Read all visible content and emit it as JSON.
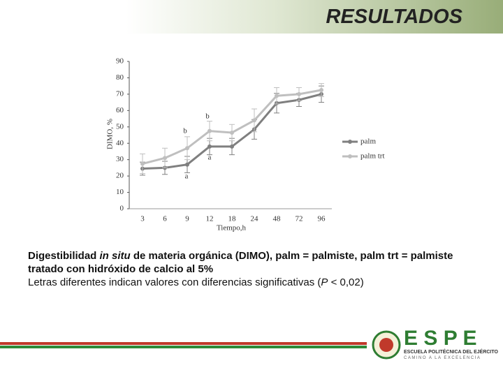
{
  "header": {
    "title": "RESULTADOS"
  },
  "chart_data": {
    "type": "line",
    "y_label": "DIMO, %",
    "x_label": "Tiempo,h",
    "categories": [
      "3",
      "6",
      "9",
      "12",
      "18",
      "24",
      "48",
      "72",
      "96"
    ],
    "series": [
      {
        "name": "palm",
        "color": "#7f7f7f",
        "values": [
          24.5,
          25,
          27,
          38,
          38,
          48.5,
          64.5,
          66.5,
          70
        ],
        "errors": [
          4,
          4,
          5,
          5,
          5,
          6,
          6,
          4,
          5
        ]
      },
      {
        "name": "palm trt",
        "color": "#bfbfbf",
        "values": [
          27.5,
          31,
          37,
          47.5,
          46.5,
          54,
          69,
          70,
          72.5
        ],
        "errors": [
          6,
          6,
          7,
          6,
          5,
          7,
          5,
          4,
          4
        ]
      }
    ],
    "ylim": [
      0,
      90
    ],
    "yticks": [
      0,
      10,
      20,
      30,
      40,
      50,
      60,
      70,
      80,
      90
    ],
    "legend": "right",
    "annotations": [
      "b",
      "b",
      "a",
      "a"
    ]
  },
  "caption": {
    "line1": [
      "Digestibilidad ",
      "in situ",
      " de materia orgánica (DIMO), palm = palmiste, palm trt = palmiste tratado con hidróxido de calcio al 5%"
    ],
    "line2": [
      "Letras diferentes indican valores con diferencias significativas (",
      "P",
      " < 0,02)"
    ]
  },
  "footer": {
    "brand": "E S P E",
    "institution": "ESCUELA POLITÉCNICA DEL EJÉRCITO",
    "motto": "CAMINO A LA EXCELENCIA"
  }
}
